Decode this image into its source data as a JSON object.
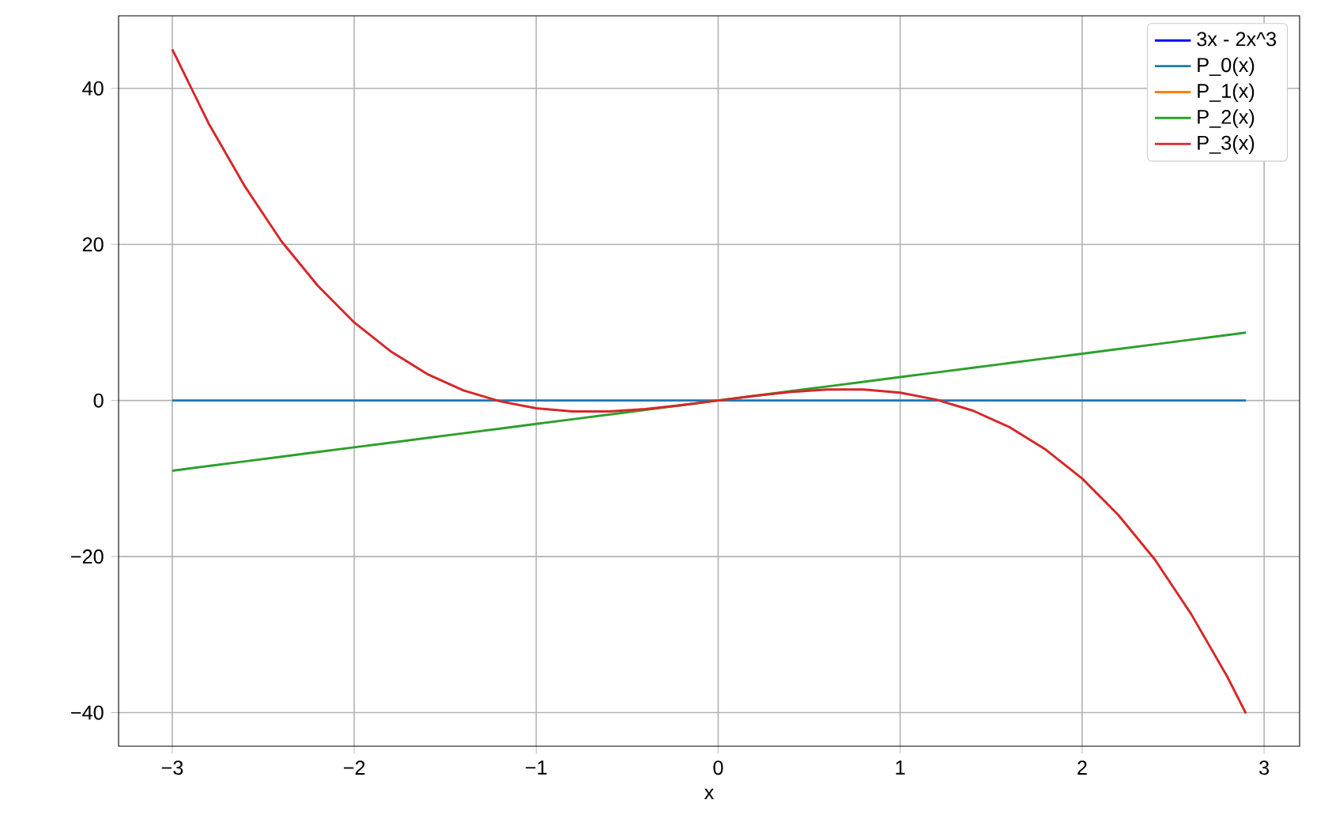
{
  "chart_data": {
    "type": "line",
    "xlabel": "x",
    "x": [
      -3,
      -2.8,
      -2.6,
      -2.4,
      -2.2,
      -2,
      -1.8,
      -1.6,
      -1.4,
      -1.2,
      -1,
      -0.8,
      -0.6,
      -0.4,
      -0.2,
      0,
      0.2,
      0.4,
      0.6,
      0.8,
      1,
      1.2,
      1.4,
      1.6,
      1.8,
      2,
      2.2,
      2.4,
      2.6,
      2.8,
      2.9
    ],
    "series": [
      {
        "name": "3x - 2x^3",
        "color": "#0000ff",
        "values": [
          null,
          null,
          null,
          null,
          null,
          null,
          null,
          null,
          null,
          null,
          null,
          null,
          null,
          null,
          null,
          null,
          null,
          null,
          null,
          null,
          null,
          null,
          null,
          null,
          null,
          null,
          null,
          null,
          null,
          null,
          null
        ]
      },
      {
        "name": "P_0(x)",
        "color": "#1f77b4",
        "values": [
          0,
          0,
          0,
          0,
          0,
          0,
          0,
          0,
          0,
          0,
          0,
          0,
          0,
          0,
          0,
          0,
          0,
          0,
          0,
          0,
          0,
          0,
          0,
          0,
          0,
          0,
          0,
          0,
          0,
          0,
          0
        ]
      },
      {
        "name": "P_1(x)",
        "color": "#ff7f0e",
        "values": [
          null,
          null,
          null,
          null,
          null,
          null,
          null,
          null,
          null,
          null,
          null,
          null,
          null,
          null,
          null,
          null,
          null,
          null,
          null,
          null,
          null,
          null,
          null,
          null,
          null,
          null,
          null,
          null,
          null,
          null,
          null
        ]
      },
      {
        "name": "P_2(x)",
        "color": "#2ca02c",
        "values": [
          -9,
          -8.4,
          -7.8,
          -7.2,
          -6.6,
          -6,
          -5.4,
          -4.8,
          -4.2,
          -3.6,
          -3,
          -2.4,
          -1.8,
          -1.2,
          -0.6,
          0,
          0.6,
          1.2,
          1.8,
          2.4,
          3,
          3.6,
          4.2,
          4.8,
          5.4,
          6,
          6.6,
          7.2,
          7.8,
          8.4,
          8.7
        ]
      },
      {
        "name": "P_3(x)",
        "color": "#d62728",
        "values": [
          45,
          35.5,
          27.4,
          20.4,
          14.7,
          10,
          6.3,
          3.4,
          1.3,
          -0.1,
          -1,
          -1.4,
          -1.4,
          -1.1,
          -0.6,
          0,
          0.6,
          1.1,
          1.4,
          1.4,
          1,
          0.1,
          -1.3,
          -3.4,
          -6.3,
          -10,
          -14.7,
          -20.4,
          -27.4,
          -35.5,
          -40.1
        ]
      }
    ],
    "xlim": [
      -3.295,
      3.195
    ],
    "ylim": [
      -44.3,
      49.3
    ],
    "xticks": [
      {
        "value": -3,
        "label": "−3"
      },
      {
        "value": -2,
        "label": "−2"
      },
      {
        "value": -1,
        "label": "−1"
      },
      0,
      1,
      2,
      3
    ],
    "yticks": [
      {
        "value": -40,
        "label": "−40"
      },
      {
        "value": -20,
        "label": "−20"
      },
      0,
      20,
      40
    ],
    "grid": true,
    "legend": "top right",
    "marker": "none",
    "line_style": "solid"
  }
}
